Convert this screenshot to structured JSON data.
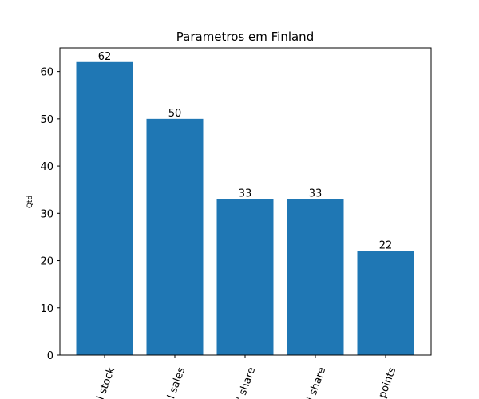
{
  "chart_data": {
    "type": "bar",
    "title": "Parametros em Finland",
    "xlabel": "",
    "ylabel": "Qtd",
    "categories": [
      "l stock",
      "l sales",
      "' share",
      "i share",
      "points"
    ],
    "values": [
      62,
      50,
      33,
      33,
      22
    ],
    "ylim": [
      0,
      65
    ],
    "yticks": [
      0,
      10,
      20,
      30,
      40,
      50,
      60
    ],
    "grid": false,
    "bar_color": "#1f77b4"
  }
}
